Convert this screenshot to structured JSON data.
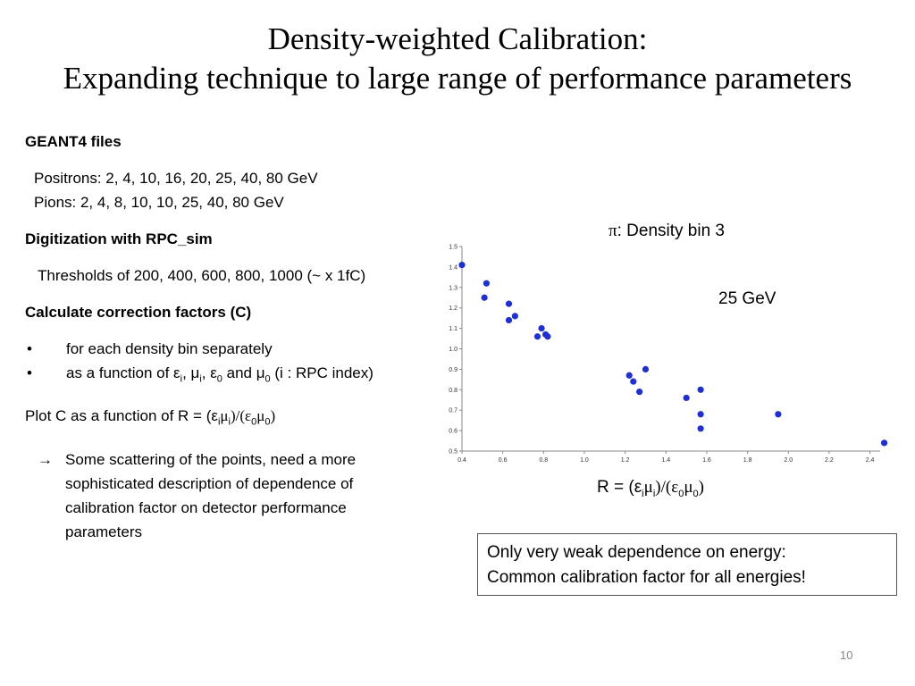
{
  "title": {
    "line1": "Density-weighted Calibration:",
    "line2": "Expanding technique to large range of performance parameters"
  },
  "left": {
    "geant_heading": "GEANT4 files",
    "positrons": "Positrons: 2, 4, 10, 16, 20, 25, 40, 80 GeV",
    "pions": "Pions: 2, 4, 8, 10, 10, 25, 40, 80 GeV",
    "digi_heading": "Digitization with RPC_sim",
    "thresholds": "Thresholds of 200, 400, 600, 800, 1000 (~ x 1fC)",
    "calc_heading": "Calculate correction factors (C)",
    "bullet_dot": "•",
    "bullet1": "for each density bin separately",
    "bullet2_pre": "as a function of ε",
    "bullet2_sub_i1": "i",
    "bullet2_mid1": ", μ",
    "bullet2_sub_i2": "i",
    "bullet2_mid2": ", ε",
    "bullet2_sub_0a": "0",
    "bullet2_mid3": " and μ",
    "bullet2_sub_0b": "0",
    "bullet2_post": " (i : RPC index)",
    "plot_pre": "Plot C as a function of R = (ε",
    "plot_sub1": "i",
    "plot_mu": "μ",
    "plot_sub2": "i",
    "plot_mid": ")/(ε",
    "plot_sub3": "0",
    "plot_mu2": "μ",
    "plot_sub4": "0",
    "plot_post": ")",
    "arrow": "→",
    "scatter_line1": "Some scattering of the points, need a more",
    "scatter_line2": "sophisticated description of dependence of",
    "scatter_line3": "calibration factor on detector performance",
    "scatter_line4": "parameters"
  },
  "chart_labels": {
    "pi_prefix": "π",
    "pi_text": ": Density bin 3",
    "energy": "25 GeV",
    "x_pre": "R = (ε",
    "x_sub1": "i",
    "x_mu": "μ",
    "x_sub2": "i",
    "x_mid": ")/(ε",
    "x_sub3": "0",
    "x_mu2": "μ",
    "x_sub4": "0",
    "x_post": ")"
  },
  "chart_data": {
    "type": "scatter",
    "xlim": [
      0.4,
      2.5
    ],
    "ylim": [
      0.5,
      1.5
    ],
    "x_ticks": [
      "0.4",
      "0.6",
      "0.8",
      "1.0",
      "1.2",
      "1.4",
      "1.6",
      "1.8",
      "2.0",
      "2.2",
      "2.4"
    ],
    "y_ticks": [
      "0.5",
      "0.6",
      "0.7",
      "0.8",
      "0.9",
      "1.0",
      "1.1",
      "1.2",
      "1.3",
      "1.4",
      "1.5"
    ],
    "grid": false,
    "marker_color": "#1f2fd6",
    "points": [
      {
        "x": 0.4,
        "y": 1.41
      },
      {
        "x": 0.52,
        "y": 1.32
      },
      {
        "x": 0.51,
        "y": 1.25
      },
      {
        "x": 0.63,
        "y": 1.22
      },
      {
        "x": 0.66,
        "y": 1.16
      },
      {
        "x": 0.63,
        "y": 1.14
      },
      {
        "x": 0.79,
        "y": 1.1
      },
      {
        "x": 0.81,
        "y": 1.07
      },
      {
        "x": 0.77,
        "y": 1.06
      },
      {
        "x": 0.82,
        "y": 1.06
      },
      {
        "x": 1.3,
        "y": 0.9
      },
      {
        "x": 1.22,
        "y": 0.87
      },
      {
        "x": 1.24,
        "y": 0.84
      },
      {
        "x": 1.27,
        "y": 0.79
      },
      {
        "x": 1.57,
        "y": 0.8
      },
      {
        "x": 1.5,
        "y": 0.76
      },
      {
        "x": 1.57,
        "y": 0.68
      },
      {
        "x": 1.95,
        "y": 0.68
      },
      {
        "x": 1.57,
        "y": 0.61
      },
      {
        "x": 2.47,
        "y": 0.54
      }
    ]
  },
  "note": {
    "line1": "Only very weak dependence on energy:",
    "line2": "Common calibration factor for all energies!"
  },
  "page_number": "10"
}
